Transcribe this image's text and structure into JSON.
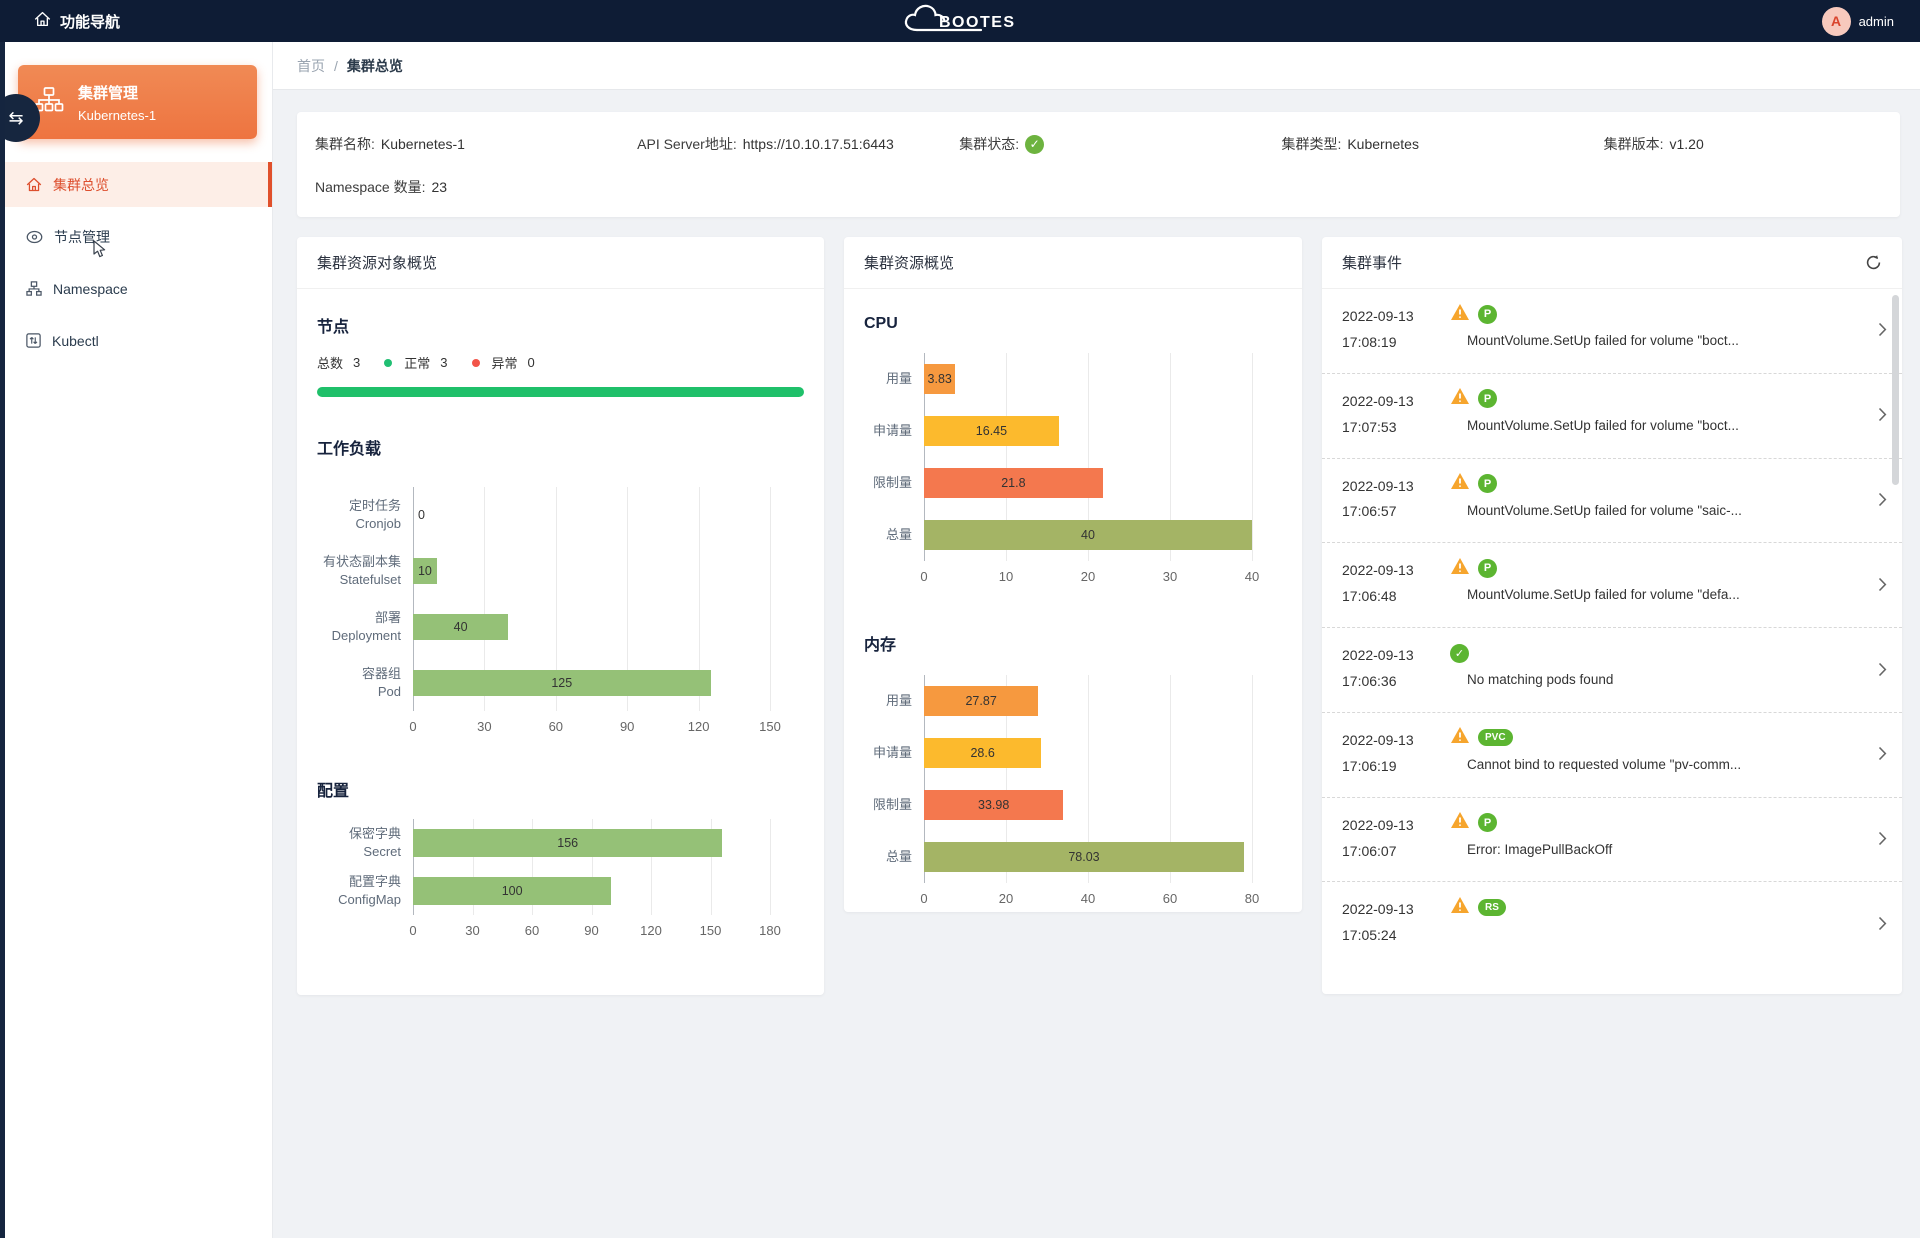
{
  "header": {
    "nav_label": "功能导航",
    "logo_text": "BOOTES",
    "user": {
      "initial": "A",
      "name": "admin"
    }
  },
  "icons": {
    "collapse": "⇆",
    "check": "✓"
  },
  "sidebar": {
    "cluster_card": {
      "title": "集群管理",
      "subtitle": "Kubernetes-1"
    },
    "items": [
      {
        "label": "集群总览",
        "active": true
      },
      {
        "label": "节点管理",
        "active": false
      },
      {
        "label": "Namespace",
        "active": false
      },
      {
        "label": "Kubectl",
        "active": false
      }
    ]
  },
  "breadcrumb": {
    "home": "首页",
    "separator": "/",
    "current": "集群总览"
  },
  "cluster_info": {
    "fields": [
      {
        "label": "集群名称:",
        "value": "Kubernetes-1"
      },
      {
        "label": "API Server地址:",
        "value": "https://10.10.17.51:6443"
      },
      {
        "label": "集群状态:",
        "value": ""
      },
      {
        "label": "集群类型:",
        "value": "Kubernetes"
      },
      {
        "label": "集群版本:",
        "value": "v1.20"
      }
    ],
    "namespace_label": "Namespace 数量:",
    "namespace_count": "23"
  },
  "panels": {
    "objects": {
      "title": "集群资源对象概览",
      "node_section": {
        "heading": "节点",
        "total_label": "总数",
        "total": "3",
        "ok_label": "正常",
        "ok": "3",
        "bad_label": "异常",
        "bad": "0",
        "ok_color": "#21bf73",
        "bad_color": "#f25449"
      }
    },
    "resources": {
      "title": "集群资源概览"
    },
    "events": {
      "title": "集群事件",
      "items": [
        {
          "date": "2022-09-13",
          "time": "17:08:19",
          "status": "warning",
          "badge": "P",
          "message": "MountVolume.SetUp failed for volume \"boct..."
        },
        {
          "date": "2022-09-13",
          "time": "17:07:53",
          "status": "warning",
          "badge": "P",
          "message": "MountVolume.SetUp failed for volume \"boct..."
        },
        {
          "date": "2022-09-13",
          "time": "17:06:57",
          "status": "warning",
          "badge": "P",
          "message": "MountVolume.SetUp failed for volume \"saic-..."
        },
        {
          "date": "2022-09-13",
          "time": "17:06:48",
          "status": "warning",
          "badge": "P",
          "message": "MountVolume.SetUp failed for volume \"defa..."
        },
        {
          "date": "2022-09-13",
          "time": "17:06:36",
          "status": "success",
          "badge": null,
          "message": "No matching pods found"
        },
        {
          "date": "2022-09-13",
          "time": "17:06:19",
          "status": "warning",
          "badge": "PVC",
          "message": "Cannot bind to requested volume \"pv-comm..."
        },
        {
          "date": "2022-09-13",
          "time": "17:06:07",
          "status": "warning",
          "badge": "P",
          "message": "Error: ImagePullBackOff"
        },
        {
          "date": "2022-09-13",
          "time": "17:05:24",
          "status": "warning",
          "badge": "RS",
          "message": ""
        }
      ]
    }
  },
  "chart_data": [
    {
      "id": "workload",
      "type": "bar",
      "orientation": "horizontal",
      "title": "工作负载",
      "categories": [
        "定时任务\nCronjob",
        "有状态副本集\nStatefulset",
        "部署\nDeployment",
        "容器组\nPod"
      ],
      "values": [
        0,
        10,
        40,
        125
      ],
      "xticks": [
        0,
        30,
        60,
        90,
        120,
        150
      ],
      "xlim": [
        0,
        150
      ],
      "bar_color": "#95c177",
      "grid": true,
      "legend": false
    },
    {
      "id": "config",
      "type": "bar",
      "orientation": "horizontal",
      "title": "配置",
      "categories": [
        "保密字典\nSecret",
        "配置字典\nConfigMap"
      ],
      "values": [
        156,
        100
      ],
      "xticks": [
        0,
        30,
        60,
        90,
        120,
        150,
        180
      ],
      "xlim": [
        0,
        180
      ],
      "bar_color": "#95c177",
      "grid": true,
      "legend": false
    },
    {
      "id": "cpu",
      "type": "bar",
      "orientation": "horizontal",
      "title": "CPU",
      "categories": [
        "用量",
        "申请量",
        "限制量",
        "总量"
      ],
      "values": [
        3.83,
        16.45,
        21.8,
        40
      ],
      "xticks": [
        0,
        10,
        20,
        30,
        40
      ],
      "xlim": [
        0,
        40
      ],
      "colors": [
        "#f6993f",
        "#fcba2d",
        "#f4784e",
        "#a4b465"
      ],
      "grid": true,
      "legend": false
    },
    {
      "id": "memory",
      "type": "bar",
      "orientation": "horizontal",
      "title": "内存",
      "categories": [
        "用量",
        "申请量",
        "限制量",
        "总量"
      ],
      "values": [
        27.87,
        28.6,
        33.98,
        78.03
      ],
      "xticks": [
        0,
        20,
        40,
        60,
        80
      ],
      "xlim": [
        0,
        80
      ],
      "colors": [
        "#f6993f",
        "#fcba2d",
        "#f4784e",
        "#a4b465"
      ],
      "grid": true,
      "legend": false
    }
  ]
}
